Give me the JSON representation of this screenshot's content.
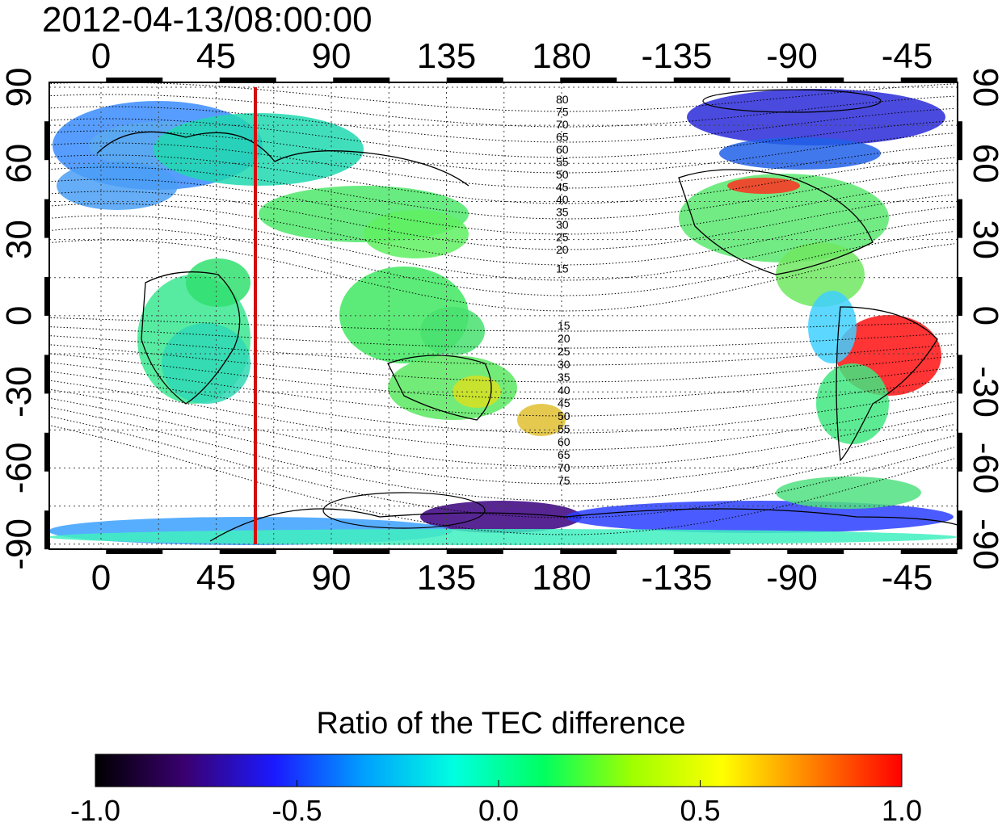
{
  "map": {
    "timestamp": "2012-04-13/08:00:00",
    "top_lon_ticks": [
      "0",
      "45",
      "90",
      "135",
      "180",
      "-135",
      "-90",
      "-45"
    ],
    "bottom_lon_ticks": [
      "0",
      "45",
      "90",
      "135",
      "180",
      "-135",
      "-90",
      "-45"
    ],
    "left_lat_ticks": [
      "90",
      "60",
      "30",
      "0",
      "-30",
      "-60",
      "-90"
    ],
    "right_lat_ticks": [
      "90",
      "60",
      "30",
      "0",
      "-30",
      "-60",
      "-90"
    ],
    "north_contour_labels": [
      "80",
      "75",
      "70",
      "65",
      "60",
      "55",
      "50",
      "45",
      "40",
      "35",
      "30",
      "25",
      "20",
      "15"
    ],
    "south_contour_labels": [
      "15",
      "20",
      "25",
      "30",
      "35",
      "40",
      "45",
      "50",
      "55",
      "60",
      "65",
      "70",
      "75"
    ],
    "marker_line_color": "#d01010"
  },
  "colorbar": {
    "title": "Ratio of the TEC difference",
    "tick_labels": [
      "-1.0",
      "-0.5",
      "0.0",
      "0.5",
      "1.0"
    ],
    "colors": [
      "#000000",
      "#3a0070",
      "#1a1aff",
      "#00a0ff",
      "#00ffe0",
      "#00ff60",
      "#a0ff00",
      "#ffff00",
      "#ff8000",
      "#ff0000"
    ]
  }
}
